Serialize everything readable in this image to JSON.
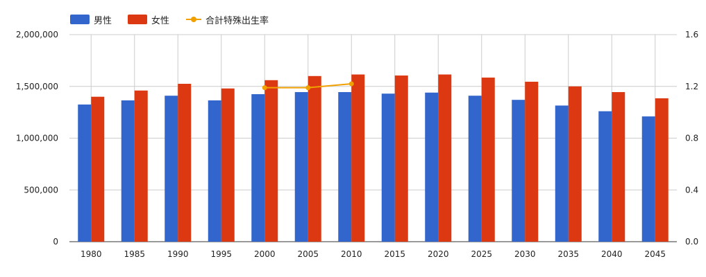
{
  "chart_data": {
    "type": "bar",
    "categories": [
      "1980",
      "1985",
      "1990",
      "1995",
      "2000",
      "2005",
      "2010",
      "2015",
      "2020",
      "2025",
      "2030",
      "2035",
      "2040",
      "2045"
    ],
    "series": [
      {
        "name": "男性",
        "type": "bar",
        "axis": "left",
        "color": "#3366cc",
        "values": [
          1325000,
          1365000,
          1410000,
          1365000,
          1425000,
          1445000,
          1445000,
          1430000,
          1440000,
          1410000,
          1370000,
          1315000,
          1260000,
          1210000
        ]
      },
      {
        "name": "女性",
        "type": "bar",
        "axis": "left",
        "color": "#dc3912",
        "values": [
          1400000,
          1460000,
          1525000,
          1480000,
          1560000,
          1600000,
          1615000,
          1605000,
          1615000,
          1585000,
          1545000,
          1500000,
          1445000,
          1385000
        ]
      },
      {
        "name": "合計特殊出生率",
        "type": "line",
        "axis": "right",
        "color": "#f0a000",
        "values": [
          null,
          null,
          null,
          null,
          1.19,
          1.19,
          1.22,
          null,
          null,
          null,
          null,
          null,
          null,
          null
        ]
      }
    ],
    "left_axis": {
      "ylim": [
        0,
        2000000
      ],
      "ticks": [
        "0",
        "500,000",
        "1,000,000",
        "1,500,000",
        "2,000,000"
      ]
    },
    "right_axis": {
      "ylim": [
        0,
        1.6
      ],
      "ticks": [
        "0.0",
        "0.4",
        "0.8",
        "1.2",
        "1.6"
      ]
    },
    "legend": [
      "男性",
      "女性",
      "合計特殊出生率"
    ],
    "legend_position": "top-left",
    "grid": true
  }
}
